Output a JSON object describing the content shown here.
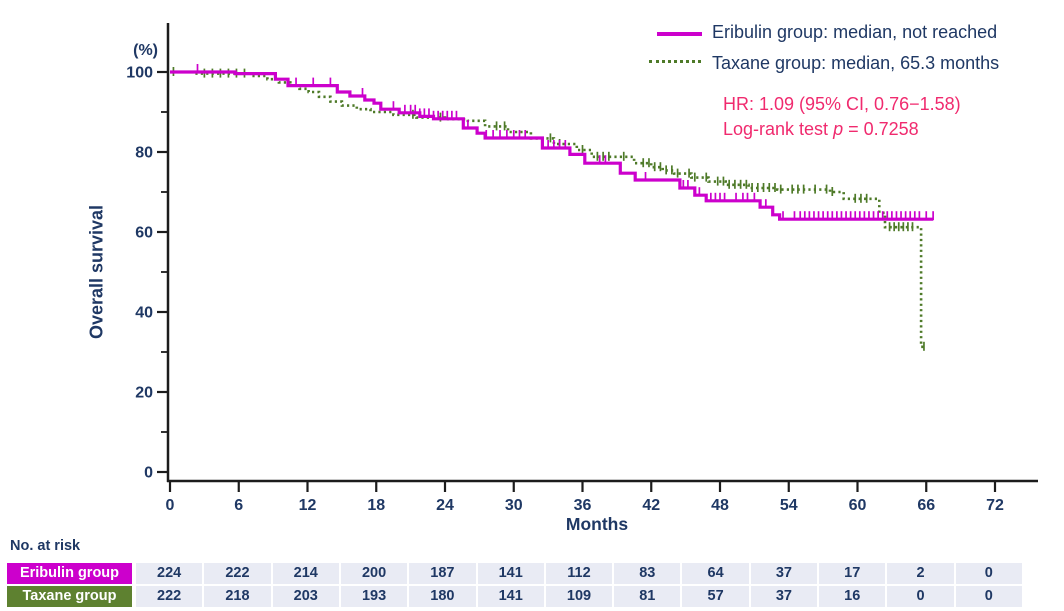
{
  "colors": {
    "navy": "#1F3864",
    "axis": "#1C1C1C",
    "eribulin_magenta": "#CC00CC",
    "taxane_green": "#4E7A28",
    "taxane_label_bg": "#5E8130",
    "annotation_pink": "#F02A6E",
    "risk_cell_bg": "#E9EBF4"
  },
  "axes": {
    "y_unit_label": "(%)",
    "y_title": "Overall survival",
    "x_title": "Months"
  },
  "legend": {
    "items": [
      {
        "label": "Eribulin group: median, not reached",
        "line_style": "solid",
        "color": "#CC00CC"
      },
      {
        "label": "Taxane group: median, 65.3 months",
        "line_style": "dotted",
        "color": "#4E7A28"
      }
    ]
  },
  "annotation": {
    "hr_line": "HR: 1.09 (95% CI, 0.76−1.58)",
    "logrank_prefix": "Log-rank test ",
    "logrank_var": "p",
    "logrank_suffix": " = 0.7258"
  },
  "chart_data": {
    "type": "line",
    "subtype": "kaplan-meier-step",
    "title": "",
    "xlabel": "Months",
    "ylabel": "Overall survival (%)",
    "xlim": [
      0,
      72
    ],
    "ylim": [
      0,
      100
    ],
    "x_ticks": [
      0,
      6,
      12,
      18,
      24,
      30,
      36,
      42,
      48,
      54,
      60,
      66,
      72
    ],
    "y_ticks": [
      0,
      20,
      40,
      60,
      80,
      100
    ],
    "y_minor_ticks": [
      10,
      30,
      50,
      70,
      90
    ],
    "grid": false,
    "legend_position": "top-right",
    "series": [
      {
        "name": "Eribulin group",
        "median": "not reached",
        "color": "#CC00CC",
        "style": "solid",
        "points": [
          [
            0,
            100
          ],
          [
            5.7,
            99.6
          ],
          [
            9.2,
            98.2
          ],
          [
            10.3,
            96.6
          ],
          [
            14.6,
            95
          ],
          [
            15.7,
            94
          ],
          [
            17,
            93
          ],
          [
            17.8,
            92.2
          ],
          [
            18.4,
            90.7
          ],
          [
            20,
            89.8
          ],
          [
            21.8,
            88.9
          ],
          [
            23,
            88.3
          ],
          [
            25.6,
            86
          ],
          [
            26.8,
            84.7
          ],
          [
            27.5,
            83.5
          ],
          [
            32.5,
            81
          ],
          [
            34.9,
            79.4
          ],
          [
            36.2,
            77.2
          ],
          [
            39.3,
            74.7
          ],
          [
            40.6,
            73
          ],
          [
            44.5,
            71
          ],
          [
            45.8,
            69.2
          ],
          [
            46.8,
            67.8
          ],
          [
            51.5,
            66.2
          ],
          [
            52.6,
            64.3
          ],
          [
            53.2,
            63.2
          ],
          [
            66.6,
            63.2
          ]
        ],
        "censor_months": [
          2.4,
          11,
          12.5,
          14,
          16.8,
          19.5,
          20.5,
          21,
          21.4,
          21.8,
          22.2,
          22.6,
          23,
          23.4,
          23.8,
          24.2,
          24.6,
          25,
          26,
          27.6,
          28.2,
          28.8,
          29.4,
          30,
          30.5,
          31,
          33,
          33.5,
          34,
          34.5,
          37.5,
          38,
          41.5,
          44.8,
          45.2,
          46.2,
          47.2,
          47.6,
          48,
          48.4,
          49.4,
          50,
          50.4,
          51,
          52,
          53.5,
          54.5,
          55,
          55.4,
          55.8,
          56.2,
          56.6,
          57,
          57.4,
          57.8,
          58.2,
          58.6,
          59,
          59.4,
          59.8,
          60.2,
          60.6,
          61,
          61.4,
          61.8,
          62.2,
          62.6,
          63,
          63.4,
          63.8,
          64.2,
          64.6,
          65,
          65.4,
          66,
          66.6
        ]
      },
      {
        "name": "Taxane group",
        "median": "65.3 months",
        "color": "#4E7A28",
        "style": "dotted",
        "points": [
          [
            0,
            100
          ],
          [
            2,
            99.6
          ],
          [
            7,
            99
          ],
          [
            8.5,
            98.2
          ],
          [
            9.5,
            97.4
          ],
          [
            10.5,
            96.6
          ],
          [
            11.3,
            95.8
          ],
          [
            12.1,
            95
          ],
          [
            13,
            93.8
          ],
          [
            14,
            92.6
          ],
          [
            15,
            91.6
          ],
          [
            16.3,
            90.7
          ],
          [
            17.5,
            90
          ],
          [
            19.5,
            89.3
          ],
          [
            21.5,
            88.6
          ],
          [
            24,
            88.2
          ],
          [
            26,
            87.8
          ],
          [
            27.5,
            86.4
          ],
          [
            29.5,
            85
          ],
          [
            31.5,
            83.4
          ],
          [
            33.5,
            82
          ],
          [
            35.5,
            80.5
          ],
          [
            36.8,
            78.8
          ],
          [
            40.5,
            77.2
          ],
          [
            42,
            76.2
          ],
          [
            43,
            75.4
          ],
          [
            44,
            74.6
          ],
          [
            45.5,
            73.6
          ],
          [
            47,
            72.6
          ],
          [
            48.5,
            71.8
          ],
          [
            50.5,
            71
          ],
          [
            53,
            70.6
          ],
          [
            57.6,
            70
          ],
          [
            58.8,
            68.3
          ],
          [
            61.9,
            64.8
          ],
          [
            62.4,
            61.2
          ],
          [
            65.45,
            61.2
          ],
          [
            65.55,
            31.3
          ],
          [
            65.9,
            31.3
          ]
        ],
        "censor_months": [
          0.3,
          3,
          3.7,
          4.4,
          5.1,
          5.8,
          6.5,
          21.2,
          23.6,
          28.5,
          29.2,
          33.2,
          34,
          36,
          37.3,
          37.8,
          38.3,
          39.6,
          41.3,
          41.8,
          42.3,
          42.8,
          43.3,
          43.8,
          44.3,
          45.3,
          45.8,
          46.8,
          47.8,
          48.3,
          48.8,
          49.3,
          49.8,
          50.3,
          50.8,
          51.3,
          51.8,
          52.3,
          52.8,
          53.3,
          54.3,
          54.8,
          55.3,
          56.3,
          57.3,
          57.8,
          59.8,
          60.3,
          60.8,
          62.8,
          63.2,
          63.6,
          64,
          64.4,
          64.8,
          65.8
        ]
      }
    ],
    "risk_table": {
      "title": "No. at risk",
      "time_points": [
        0,
        6,
        12,
        18,
        24,
        30,
        36,
        42,
        48,
        54,
        60,
        66,
        72
      ],
      "rows": [
        {
          "label": "Eribulin group",
          "values": [
            "224",
            "222",
            "214",
            "200",
            "187",
            "141",
            "112",
            "83",
            "64",
            "37",
            "17",
            "2",
            "0"
          ]
        },
        {
          "label": "Taxane group",
          "values": [
            "222",
            "218",
            "203",
            "193",
            "180",
            "141",
            "109",
            "81",
            "57",
            "37",
            "16",
            "0",
            "0"
          ]
        }
      ]
    }
  }
}
